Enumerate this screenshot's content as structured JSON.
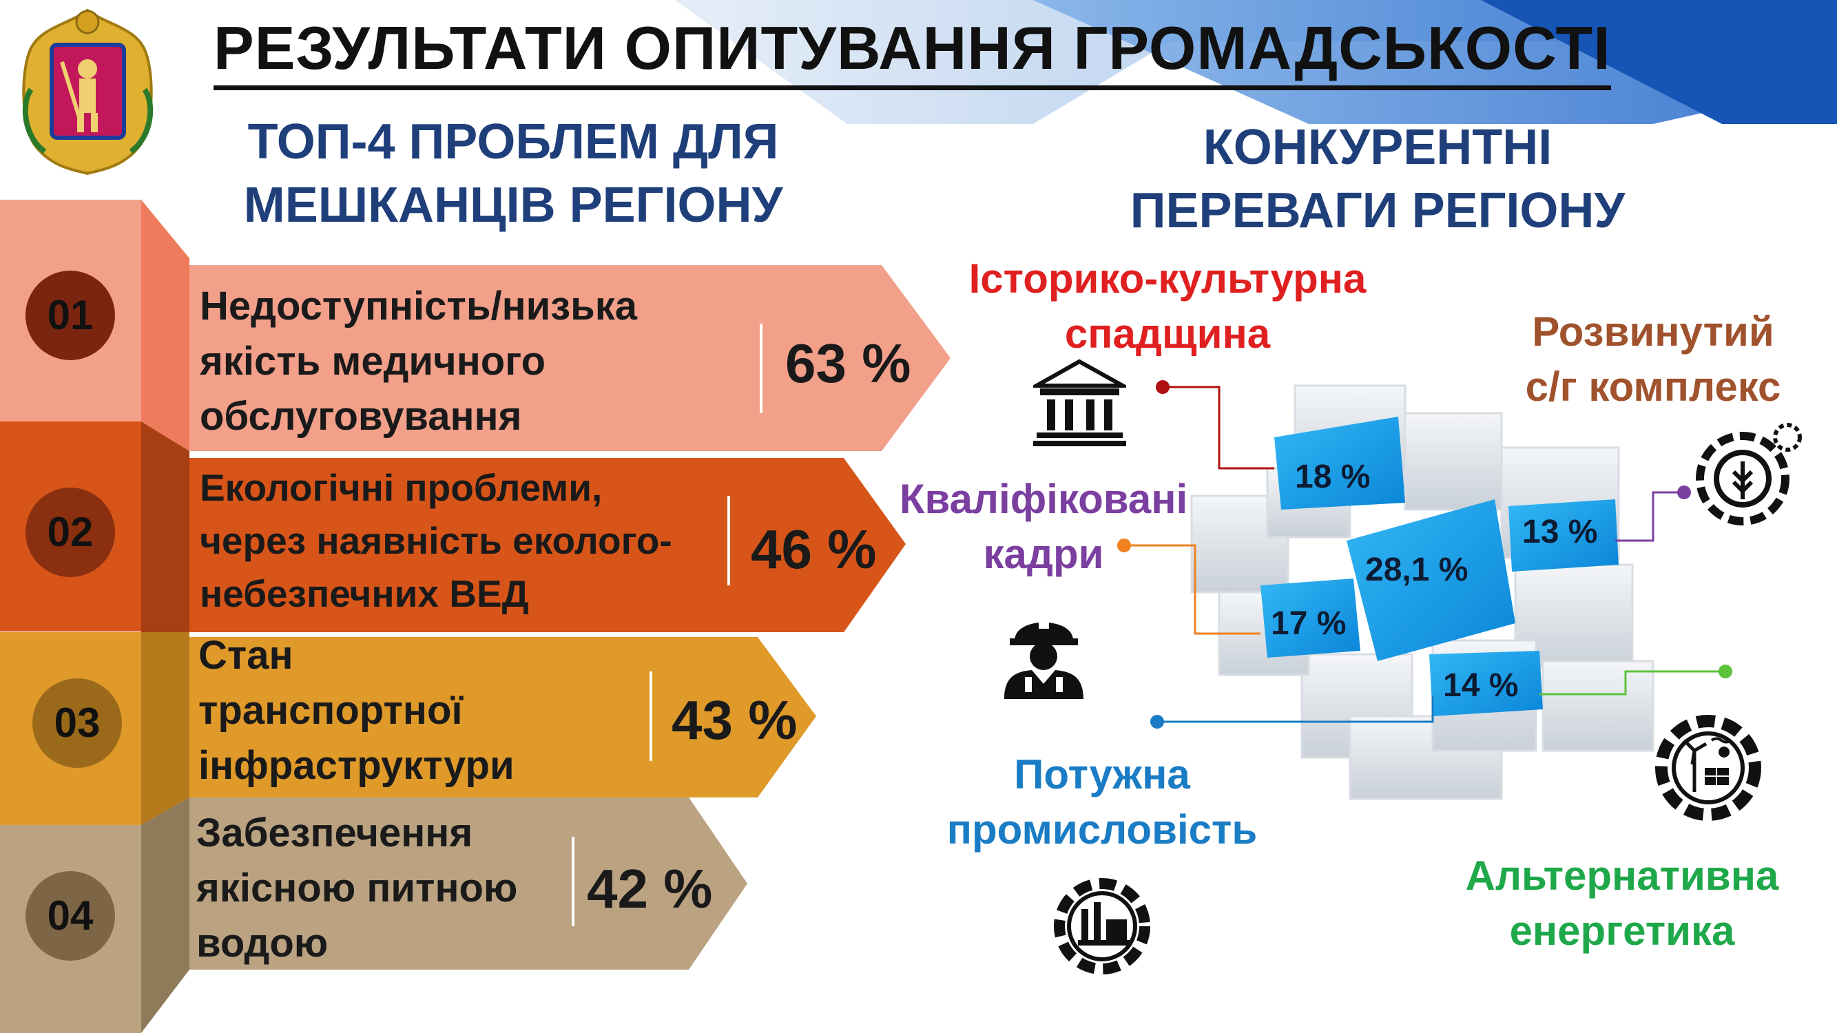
{
  "title": "РЕЗУЛЬТАТИ ОПИТУВАННЯ ГРОМАДСЬКОСТІ",
  "problems_heading": [
    "ТОП-4 ПРОБЛЕМ ДЛЯ",
    "МЕШКАНЦІВ РЕГІОНУ"
  ],
  "advantages_heading": [
    "КОНКУРЕНТНІ",
    "ПЕРЕВАГИ РЕГІОНУ"
  ],
  "problems": [
    {
      "num": "01",
      "lines": [
        "Недоступність/низька",
        "якість медичного",
        "обслуговування"
      ],
      "percent": "63 %",
      "color": "#f2a08a",
      "tab_color": "#ee7b5c",
      "circle": "#7a2510"
    },
    {
      "num": "02",
      "lines": [
        "Екологічні проблеми,",
        "через наявність еколого-",
        "небезпечних ВЕД"
      ],
      "percent": "46 %",
      "color": "#d85519",
      "tab_color": "#d85519",
      "circle": "#8a3010"
    },
    {
      "num": "03",
      "lines": [
        "Стан",
        "транспортної",
        "інфраструктури"
      ],
      "percent": "43 %",
      "color": "#e09a2a",
      "tab_color": "#e09a2a",
      "circle": "#9a6a1a"
    },
    {
      "num": "04",
      "lines": [
        "Забезпечення",
        "якісною питною",
        "водою"
      ],
      "percent": "42 %",
      "color": "#bba382",
      "tab_color": "#bba382",
      "circle": "#7d6545"
    }
  ],
  "advantages": [
    {
      "lines": [
        "Історико-культурна",
        "спадщина"
      ],
      "percent": "18 %",
      "color": "#e02020",
      "icon": "museum-icon"
    },
    {
      "lines": [
        "Розвинутий",
        "с/г комплекс"
      ],
      "percent": "13 %",
      "color": "#a0522d",
      "icon": "agro-gear-icon"
    },
    {
      "lines": [
        "Кваліфіковані",
        "кадри"
      ],
      "percent": "17 %",
      "color": "#7b3fa0",
      "icon": "worker-icon"
    },
    {
      "lines": [
        "Потужна",
        "промисловість"
      ],
      "percent": "14 %",
      "color": "#1a7cc4",
      "icon": "factory-gear-icon"
    },
    {
      "lines": [
        "Альтернативна",
        "енергетика"
      ],
      "percent": "14 %",
      "color": "#1fa84a",
      "icon": "energy-gear-icon"
    }
  ],
  "center_percent": "28,1 %",
  "cube_labels": {
    "a": "18 %",
    "b": "13 %",
    "c": "28,1 %",
    "d": "17 %",
    "e": "14 %"
  }
}
